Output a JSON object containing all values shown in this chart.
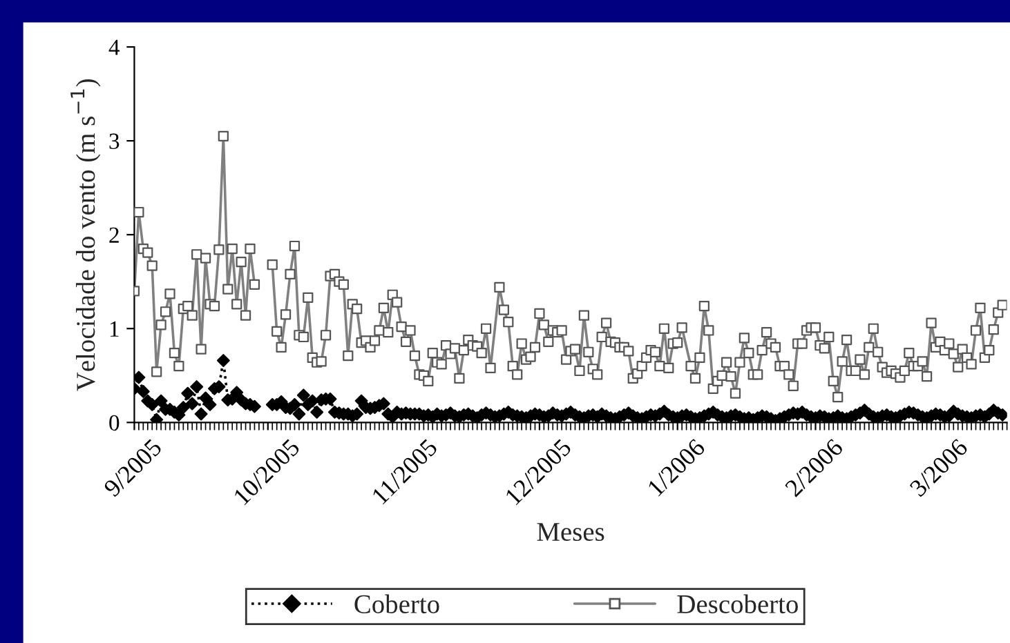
{
  "chart_data": {
    "type": "line",
    "xlabel": "Meses",
    "ylabel": "Velocidade do vento (m s$^{−1}$)",
    "x": [
      "2005-09-01",
      "2005-09-02",
      "2005-09-03",
      "2005-09-04",
      "2005-09-05",
      "2005-09-06",
      "2005-09-07",
      "2005-09-08",
      "2005-09-09",
      "2005-09-10",
      "2005-09-11",
      "2005-09-12",
      "2005-09-13",
      "2005-09-14",
      "2005-09-15",
      "2005-09-16",
      "2005-09-17",
      "2005-09-18",
      "2005-09-19",
      "2005-09-20",
      "2005-09-21",
      "2005-09-22",
      "2005-09-23",
      "2005-09-24",
      "2005-09-25",
      "2005-09-26",
      "2005-09-27",
      "2005-09-28",
      "2005-09-29",
      "2005-09-30",
      "2005-10-01",
      "2005-10-02",
      "2005-10-03",
      "2005-10-04",
      "2005-10-05",
      "2005-10-06",
      "2005-10-07",
      "2005-10-08",
      "2005-10-09",
      "2005-10-10",
      "2005-10-11",
      "2005-10-12",
      "2005-10-13",
      "2005-10-14",
      "2005-10-15",
      "2005-10-16",
      "2005-10-17",
      "2005-10-18",
      "2005-10-19",
      "2005-10-20",
      "2005-10-21",
      "2005-10-22",
      "2005-10-23",
      "2005-10-24",
      "2005-10-25",
      "2005-10-26",
      "2005-10-27",
      "2005-10-28",
      "2005-10-29",
      "2005-10-30",
      "2005-10-31",
      "2005-11-01",
      "2005-11-02",
      "2005-11-03",
      "2005-11-04",
      "2005-11-05",
      "2005-11-06",
      "2005-11-07",
      "2005-11-08",
      "2005-11-09",
      "2005-11-10",
      "2005-11-11",
      "2005-11-12",
      "2005-11-13",
      "2005-11-14",
      "2005-11-15",
      "2005-11-16",
      "2005-11-17",
      "2005-11-18",
      "2005-11-19",
      "2005-11-20",
      "2005-11-21",
      "2005-11-22",
      "2005-11-23",
      "2005-11-24",
      "2005-11-25",
      "2005-11-26",
      "2005-11-27",
      "2005-11-28",
      "2005-11-29",
      "2005-11-30",
      "2005-12-01",
      "2005-12-02",
      "2005-12-03",
      "2005-12-04",
      "2005-12-05",
      "2005-12-06",
      "2005-12-07",
      "2005-12-08",
      "2005-12-09",
      "2005-12-10",
      "2005-12-11",
      "2005-12-12",
      "2005-12-13",
      "2005-12-14",
      "2005-12-15",
      "2005-12-16",
      "2005-12-17",
      "2005-12-18",
      "2005-12-19",
      "2005-12-20",
      "2005-12-21",
      "2005-12-22",
      "2005-12-23",
      "2005-12-24",
      "2005-12-25",
      "2005-12-26",
      "2005-12-27",
      "2005-12-28",
      "2005-12-29",
      "2005-12-30",
      "2005-12-31",
      "2006-01-01",
      "2006-01-02",
      "2006-01-03",
      "2006-01-04",
      "2006-01-05",
      "2006-01-06",
      "2006-01-07",
      "2006-01-08",
      "2006-01-09",
      "2006-01-10",
      "2006-01-11",
      "2006-01-12",
      "2006-01-13",
      "2006-01-14",
      "2006-01-15",
      "2006-01-16",
      "2006-01-17",
      "2006-01-18",
      "2006-01-19",
      "2006-01-20",
      "2006-01-21",
      "2006-01-22",
      "2006-01-23",
      "2006-01-24",
      "2006-01-25",
      "2006-01-26",
      "2006-01-27",
      "2006-01-28",
      "2006-01-29",
      "2006-01-30",
      "2006-01-31",
      "2006-02-01",
      "2006-02-02",
      "2006-02-03",
      "2006-02-04",
      "2006-02-05",
      "2006-02-06",
      "2006-02-07",
      "2006-02-08",
      "2006-02-09",
      "2006-02-10",
      "2006-02-11",
      "2006-02-12",
      "2006-02-13",
      "2006-02-14",
      "2006-02-15",
      "2006-02-16",
      "2006-02-17",
      "2006-02-18",
      "2006-02-19",
      "2006-02-20",
      "2006-02-21",
      "2006-02-22",
      "2006-02-23",
      "2006-02-24",
      "2006-02-25",
      "2006-02-26",
      "2006-02-27",
      "2006-02-28",
      "2006-03-01",
      "2006-03-02",
      "2006-03-03",
      "2006-03-04",
      "2006-03-05",
      "2006-03-06",
      "2006-03-07",
      "2006-03-08",
      "2006-03-09",
      "2006-03-10",
      "2006-03-11",
      "2006-03-12",
      "2006-03-13",
      "2006-03-14",
      "2006-03-15"
    ],
    "series": [
      {
        "name": "Coberto",
        "color": "#000000",
        "marker": "diamond",
        "line_style": "dotted",
        "values": [
          0.36,
          0.48,
          0.33,
          0.23,
          0.19,
          0.03,
          0.23,
          0.14,
          0.14,
          0.11,
          0.08,
          0.16,
          0.31,
          0.2,
          0.38,
          0.09,
          0.26,
          0.19,
          0.36,
          0.38,
          0.66,
          0.24,
          0.25,
          0.32,
          0.24,
          0.2,
          0.19,
          0.17,
          null,
          null,
          null,
          0.19,
          0.19,
          0.22,
          0.16,
          0.15,
          0.19,
          0.09,
          0.29,
          0.19,
          0.23,
          0.11,
          0.24,
          0.25,
          0.25,
          0.11,
          0.1,
          0.09,
          0.09,
          0.07,
          0.09,
          0.23,
          0.16,
          0.15,
          0.16,
          0.18,
          0.2,
          0.09,
          0.06,
          0.11,
          0.09,
          0.1,
          0.09,
          0.09,
          0.09,
          0.07,
          0.08,
          0.06,
          0.09,
          0.07,
          0.08,
          0.1,
          0.07,
          0.06,
          0.08,
          0.09,
          0.07,
          0.05,
          0.08,
          0.1,
          0.08,
          0.06,
          0.07,
          0.09,
          0.11,
          0.08,
          0.07,
          0.06,
          0.05,
          0.07,
          0.09,
          0.08,
          0.06,
          0.07,
          0.1,
          0.08,
          0.07,
          0.09,
          0.11,
          0.08,
          0.06,
          0.05,
          0.07,
          0.08,
          0.06,
          0.09,
          0.07,
          0.05,
          0.04,
          0.06,
          0.08,
          0.1,
          0.07,
          0.05,
          0.04,
          0.06,
          0.08,
          0.07,
          0.09,
          0.12,
          0.08,
          0.06,
          0.05,
          0.07,
          0.08,
          0.06,
          0.04,
          0.05,
          0.07,
          0.09,
          0.11,
          0.08,
          0.06,
          0.05,
          0.07,
          0.08,
          0.06,
          0.04,
          0.05,
          0.03,
          0.05,
          0.07,
          0.06,
          0.04,
          0.02,
          0.04,
          0.06,
          0.08,
          0.1,
          0.09,
          0.11,
          0.08,
          0.06,
          0.05,
          0.07,
          0.06,
          0.04,
          0.05,
          0.07,
          0.05,
          0.04,
          0.06,
          0.08,
          0.1,
          0.13,
          0.09,
          0.06,
          0.05,
          0.07,
          0.08,
          0.06,
          0.05,
          0.07,
          0.09,
          0.11,
          0.1,
          0.08,
          0.06,
          0.05,
          0.07,
          0.09,
          0.08,
          0.06,
          0.07,
          0.12,
          0.09,
          0.07,
          0.06,
          0.05,
          0.07,
          0.08,
          0.06,
          0.09,
          0.13,
          0.1,
          0.08
        ]
      },
      {
        "name": "Descoberto",
        "color": "#808080",
        "marker": "square",
        "line_style": "solid",
        "x": [
          "2005-09-01",
          "2005-09-02",
          "2005-09-03",
          "2005-09-04",
          "2005-09-05",
          "2005-09-06",
          "2005-09-07",
          "2005-09-08",
          "2005-09-09",
          "2005-09-10",
          "2005-09-11",
          "2005-09-12",
          "2005-09-13",
          "2005-09-14",
          "2005-09-15",
          "2005-09-16",
          "2005-09-17",
          "2005-09-18",
          "2005-09-19",
          "2005-09-20",
          "2005-09-21",
          "2005-09-22",
          "2005-09-23",
          "2005-09-24",
          "2005-09-25",
          "2005-09-26",
          "2005-09-27",
          "2005-09-28",
          "2005-09-29",
          "2005-09-30",
          "2005-10-01",
          "2005-10-02",
          "2005-10-03",
          "2005-10-04",
          "2005-10-05",
          "2005-10-06",
          "2005-10-07",
          "2005-10-08",
          "2005-10-09",
          "2005-10-10",
          "2005-10-11",
          "2005-10-12",
          "2005-10-13",
          "2005-10-14",
          "2005-10-15",
          "2005-10-16",
          "2005-10-17",
          "2005-10-18",
          "2005-10-19",
          "2005-10-20",
          "2005-10-21",
          "2005-10-22",
          "2005-10-23",
          "2005-10-24",
          "2005-10-25",
          "2005-10-26",
          "2005-10-27",
          "2005-10-28",
          "2005-10-29",
          "2005-10-30",
          "2005-10-31",
          "2005-11-01",
          "2005-11-02",
          "2005-11-03",
          "2005-11-04",
          "2005-11-05",
          "2005-11-06",
          "2005-11-07",
          "2005-11-08",
          "2005-11-09",
          "2005-11-10",
          "2005-11-11",
          "2005-11-12",
          "2005-11-13",
          "2005-11-14",
          "2005-11-15",
          "2005-11-16",
          "2005-11-17",
          "2005-11-18",
          "2005-11-19",
          "2005-11-20",
          "2005-11-22",
          "2005-11-23",
          "2005-11-24",
          "2005-11-25",
          "2005-11-26",
          "2005-11-27",
          "2005-11-28",
          "2005-11-29",
          "2005-11-30",
          "2005-12-01",
          "2005-12-02",
          "2005-12-03",
          "2005-12-04",
          "2005-12-05",
          "2005-12-06",
          "2005-12-07",
          "2005-12-08",
          "2005-12-09",
          "2005-12-10",
          "2005-12-11",
          "2005-12-12",
          "2005-12-13",
          "2005-12-14",
          "2005-12-15",
          "2005-12-16",
          "2005-12-17",
          "2005-12-18",
          "2005-12-19",
          "2005-12-20",
          "2005-12-21",
          "2005-12-22",
          "2005-12-23",
          "2005-12-24",
          "2005-12-25",
          "2005-12-26",
          "2005-12-27",
          "2005-12-28",
          "2005-12-29",
          "2005-12-30",
          "2005-12-31",
          "2006-01-01",
          "2006-01-02",
          "2006-01-04",
          "2006-01-05",
          "2006-01-06",
          "2006-01-07",
          "2006-01-08",
          "2006-01-09",
          "2006-01-10",
          "2006-01-11",
          "2006-01-12",
          "2006-01-13",
          "2006-01-14",
          "2006-01-15",
          "2006-01-16",
          "2006-01-17",
          "2006-01-18",
          "2006-01-19",
          "2006-01-20",
          "2006-01-21",
          "2006-01-22",
          "2006-01-23",
          "2006-01-24",
          "2006-01-25",
          "2006-01-26",
          "2006-01-27",
          "2006-01-28",
          "2006-01-29",
          "2006-01-30",
          "2006-01-31",
          "2006-02-01",
          "2006-02-02",
          "2006-02-03",
          "2006-02-04",
          "2006-02-05",
          "2006-02-06",
          "2006-02-07",
          "2006-02-08",
          "2006-02-09",
          "2006-02-10",
          "2006-02-11",
          "2006-02-12",
          "2006-02-13",
          "2006-02-14",
          "2006-02-15",
          "2006-02-16",
          "2006-02-17",
          "2006-02-18",
          "2006-02-19",
          "2006-02-20",
          "2006-02-21",
          "2006-02-22",
          "2006-02-23",
          "2006-02-24",
          "2006-02-25",
          "2006-02-26",
          "2006-02-27",
          "2006-02-28",
          "2006-03-01",
          "2006-03-02",
          "2006-03-03",
          "2006-03-04",
          "2006-03-05",
          "2006-03-06",
          "2006-03-07",
          "2006-03-08",
          "2006-03-09",
          "2006-03-10",
          "2006-03-11",
          "2006-03-12",
          "2006-03-13",
          "2006-03-14",
          "2006-03-15"
        ],
        "values": [
          1.4,
          2.24,
          1.85,
          1.81,
          1.67,
          0.54,
          1.04,
          1.18,
          1.37,
          0.74,
          0.6,
          1.21,
          1.24,
          1.14,
          1.79,
          0.78,
          1.75,
          1.26,
          1.24,
          1.84,
          3.05,
          1.42,
          1.85,
          1.26,
          1.71,
          1.14,
          1.85,
          1.47,
          null,
          null,
          null,
          1.68,
          0.97,
          0.8,
          1.15,
          1.58,
          1.88,
          0.93,
          0.91,
          1.33,
          0.69,
          0.64,
          0.65,
          0.93,
          1.56,
          1.58,
          1.5,
          1.47,
          0.71,
          1.26,
          1.21,
          0.85,
          0.87,
          0.8,
          0.87,
          0.98,
          1.22,
          0.96,
          1.36,
          1.28,
          1.02,
          0.86,
          0.98,
          0.71,
          0.51,
          0.5,
          0.44,
          0.74,
          0.64,
          0.62,
          0.82,
          0.73,
          0.79,
          0.47,
          0.77,
          0.88,
          0.82,
          0.81,
          0.74,
          1.0,
          0.58,
          1.44,
          1.2,
          1.07,
          0.6,
          0.51,
          0.84,
          0.67,
          0.7,
          0.8,
          1.16,
          1.04,
          0.86,
          0.98,
          0.96,
          0.98,
          0.67,
          0.76,
          0.78,
          0.55,
          1.14,
          0.75,
          0.57,
          0.51,
          0.91,
          1.06,
          0.86,
          0.85,
          0.8,
          0.8,
          0.76,
          0.47,
          0.52,
          0.6,
          0.69,
          0.77,
          0.75,
          0.6,
          1.0,
          0.58,
          0.84,
          0.85,
          1.01,
          0.6,
          0.47,
          0.69,
          1.24,
          0.98,
          0.36,
          0.44,
          0.5,
          0.64,
          0.49,
          0.31,
          0.64,
          0.9,
          0.74,
          0.51,
          0.51,
          0.77,
          0.96,
          0.84,
          0.8,
          0.6,
          0.6,
          0.51,
          0.39,
          0.84,
          0.84,
          0.98,
          1.01,
          1.01,
          0.82,
          0.79,
          0.91,
          0.44,
          0.27,
          0.65,
          0.88,
          0.55,
          0.55,
          0.67,
          0.51,
          0.8,
          1.0,
          0.75,
          0.59,
          0.53,
          0.55,
          0.52,
          0.48,
          0.55,
          0.74,
          0.6,
          0.6,
          0.65,
          0.49,
          1.06,
          0.8,
          0.86,
          0.77,
          0.84,
          0.73,
          0.59,
          0.78,
          0.69,
          0.62,
          0.98,
          1.22,
          0.69,
          0.77,
          0.99,
          1.17,
          1.25
        ]
      }
    ],
    "xlim": [
      "2005-09-01",
      "2006-03-16"
    ],
    "xticks": [
      {
        "value": "2005-09-01",
        "label": "9/2005"
      },
      {
        "value": "2005-10-01",
        "label": "10/2005"
      },
      {
        "value": "2005-11-01",
        "label": "11/2005"
      },
      {
        "value": "2005-12-01",
        "label": "12/2005"
      },
      {
        "value": "2006-01-01",
        "label": "1/2006"
      },
      {
        "value": "2006-02-01",
        "label": "2/2006"
      },
      {
        "value": "2006-03-01",
        "label": "3/2006"
      }
    ],
    "ylim": [
      0,
      4
    ],
    "yticks": [
      0,
      1,
      2,
      3,
      4
    ],
    "grid": false,
    "legend": "bottom"
  }
}
